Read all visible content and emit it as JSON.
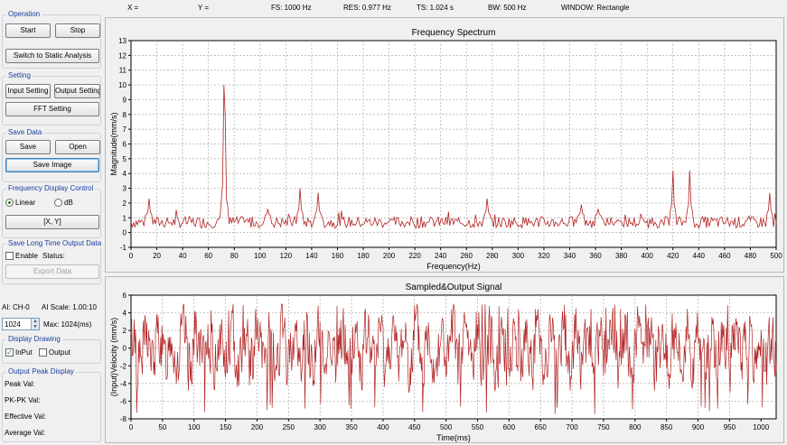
{
  "statusbar": {
    "x": "X =",
    "y": "Y =",
    "fs": "FS: 1000 Hz",
    "res": "RES: 0.977 Hz",
    "ts": "TS: 1.024 s",
    "bw": "BW: 500 Hz",
    "window": "WINDOW: Rectangle"
  },
  "operation": {
    "title": "Operation",
    "start_label": "Start",
    "stop_label": "Stop",
    "switch_label": "Switch to Static Analysis"
  },
  "setting": {
    "title": "Setting",
    "input_label": "Input Setting",
    "output_label": "Output Setting",
    "fft_label": "FFT Setting"
  },
  "save_data": {
    "title": "Save Data",
    "save_label": "Save",
    "open_label": "Open",
    "save_image_label": "Save Image"
  },
  "freq_display": {
    "title": "Frequency Display Control",
    "linear_label": "Linear",
    "db_label": "dB",
    "selected": "Linear",
    "xy_label": "[X, Y]"
  },
  "long_time": {
    "title": "Save Long Time Output Data",
    "enable_label": "Enable",
    "status_label": "Status:",
    "export_label": "Export Data"
  },
  "ai": {
    "channel": "AI: CH-0",
    "scale": "AI Scale: 1.00:10",
    "points": "1024",
    "max": "Max: 1024(ms)"
  },
  "display_drawing": {
    "title": "Display Drawing",
    "input_label": "InPut",
    "output_label": "Output",
    "input_checked": true,
    "output_checked": false
  },
  "peak_display": {
    "title": "Output Peak Display",
    "peak": "Peak Val:",
    "pkpk": "PK-PK Val:",
    "effective": "Effective Val:",
    "average": "Average Val:"
  },
  "chart_data": [
    {
      "type": "line",
      "title": "Frequency Spectrum",
      "xlabel": "Frequency(Hz)",
      "ylabel": "Magnitude(mm/s)",
      "xlim": [
        0,
        500
      ],
      "ylim": [
        -1,
        13
      ],
      "xticks": [
        0,
        20,
        40,
        60,
        80,
        100,
        120,
        140,
        160,
        180,
        200,
        220,
        240,
        260,
        280,
        300,
        320,
        340,
        360,
        380,
        400,
        420,
        440,
        460,
        480,
        500
      ],
      "yticks": [
        -1,
        0,
        1,
        2,
        3,
        4,
        5,
        6,
        7,
        8,
        9,
        10,
        11,
        12,
        13
      ],
      "grid": true,
      "color": "#b22222",
      "baseline_range": [
        0.3,
        1.1
      ],
      "peaks": [
        {
          "x": 14,
          "y": 2.3
        },
        {
          "x": 72,
          "y": 10.0
        },
        {
          "x": 72.5,
          "y": 8.0
        },
        {
          "x": 106,
          "y": 1.6
        },
        {
          "x": 131,
          "y": 3.0
        },
        {
          "x": 145,
          "y": 2.7
        },
        {
          "x": 276,
          "y": 2.3
        },
        {
          "x": 349,
          "y": 1.9
        },
        {
          "x": 362,
          "y": 1.6
        },
        {
          "x": 420,
          "y": 4.2
        },
        {
          "x": 433,
          "y": 4.2
        },
        {
          "x": 495,
          "y": 2.7
        }
      ]
    },
    {
      "type": "line",
      "title": "Sampled&Output Signal",
      "xlabel": "Time(ms)",
      "ylabel": "(Input)Velocity (mm/s)",
      "xlim": [
        0,
        1024
      ],
      "ylim": [
        -8,
        6
      ],
      "xticks": [
        0,
        50,
        100,
        150,
        200,
        250,
        300,
        350,
        400,
        450,
        500,
        550,
        600,
        650,
        700,
        750,
        800,
        850,
        900,
        950,
        1000
      ],
      "yticks": [
        -8,
        -6,
        -4,
        -2,
        0,
        2,
        4,
        6
      ],
      "grid": true,
      "color": "#b22222",
      "amplitude_range": [
        -7.5,
        5
      ]
    }
  ]
}
